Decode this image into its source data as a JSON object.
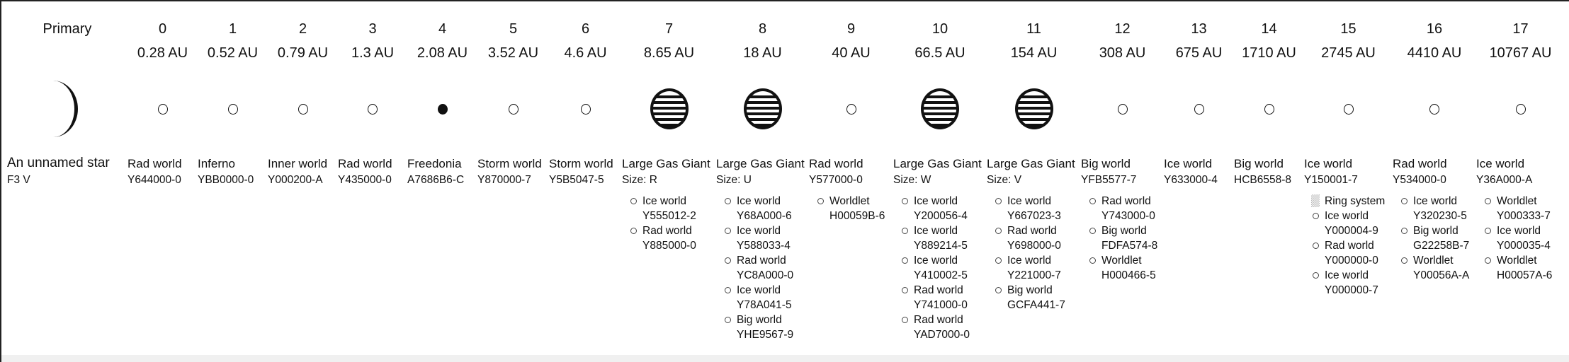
{
  "primary": {
    "label": "Primary",
    "name": "An unnamed star",
    "classification": "F3 V",
    "icon": "star-arc"
  },
  "orbits": [
    {
      "orbit": "0",
      "distance": "0.28 AU",
      "icon": "small-world",
      "type": "Rad world",
      "detail": "Y644000-0",
      "moons": []
    },
    {
      "orbit": "1",
      "distance": "0.52 AU",
      "icon": "small-world",
      "type": "Inferno",
      "detail": "YBB0000-0",
      "moons": []
    },
    {
      "orbit": "2",
      "distance": "0.79 AU",
      "icon": "small-world",
      "type": "Inner world",
      "detail": "Y000200-A",
      "moons": []
    },
    {
      "orbit": "3",
      "distance": "1.3 AU",
      "icon": "small-world",
      "type": "Rad world",
      "detail": "Y435000-0",
      "moons": []
    },
    {
      "orbit": "4",
      "distance": "2.08 AU",
      "icon": "mainworld-filled",
      "type": "Freedonia",
      "detail": "A7686B6-C",
      "moons": []
    },
    {
      "orbit": "5",
      "distance": "3.52 AU",
      "icon": "small-world",
      "type": "Storm world",
      "detail": "Y870000-7",
      "moons": []
    },
    {
      "orbit": "6",
      "distance": "4.6 AU",
      "icon": "small-world",
      "type": "Storm world",
      "detail": "Y5B5047-5",
      "moons": []
    },
    {
      "orbit": "7",
      "distance": "8.65 AU",
      "icon": "gas-giant",
      "type": "Large Gas Giant",
      "detail": "Size: R",
      "moons": [
        {
          "type": "Ice world",
          "upp": "Y555012-2"
        },
        {
          "type": "Rad world",
          "upp": "Y885000-0"
        }
      ]
    },
    {
      "orbit": "8",
      "distance": "18 AU",
      "icon": "gas-giant",
      "type": "Large Gas Giant",
      "detail": "Size: U",
      "moons": [
        {
          "type": "Ice world",
          "upp": "Y68A000-6"
        },
        {
          "type": "Ice world",
          "upp": "Y588033-4"
        },
        {
          "type": "Rad world",
          "upp": "YC8A000-0"
        },
        {
          "type": "Ice world",
          "upp": "Y78A041-5"
        },
        {
          "type": "Big world",
          "upp": "YHE9567-9"
        }
      ]
    },
    {
      "orbit": "9",
      "distance": "40 AU",
      "icon": "small-world",
      "type": "Rad world",
      "detail": "Y577000-0",
      "moons": [
        {
          "type": "Worldlet",
          "upp": "H00059B-6"
        }
      ]
    },
    {
      "orbit": "10",
      "distance": "66.5 AU",
      "icon": "gas-giant",
      "type": "Large Gas Giant",
      "detail": "Size: W",
      "moons": [
        {
          "type": "Ice world",
          "upp": "Y200056-4"
        },
        {
          "type": "Ice world",
          "upp": "Y889214-5"
        },
        {
          "type": "Ice world",
          "upp": "Y410002-5"
        },
        {
          "type": "Rad world",
          "upp": "Y741000-0"
        },
        {
          "type": "Rad world",
          "upp": "YAD7000-0"
        }
      ]
    },
    {
      "orbit": "11",
      "distance": "154 AU",
      "icon": "gas-giant",
      "type": "Large Gas Giant",
      "detail": "Size: V",
      "moons": [
        {
          "type": "Ice world",
          "upp": "Y667023-3"
        },
        {
          "type": "Rad world",
          "upp": "Y698000-0"
        },
        {
          "type": "Ice world",
          "upp": "Y221000-7"
        },
        {
          "type": "Big world",
          "upp": "GCFA441-7"
        }
      ]
    },
    {
      "orbit": "12",
      "distance": "308 AU",
      "icon": "small-world",
      "type": "Big world",
      "detail": "YFB5577-7",
      "moons": [
        {
          "type": "Rad world",
          "upp": "Y743000-0"
        },
        {
          "type": "Big world",
          "upp": "FDFA574-8"
        },
        {
          "type": "Worldlet",
          "upp": "H000466-5"
        }
      ]
    },
    {
      "orbit": "13",
      "distance": "675 AU",
      "icon": "small-world",
      "type": "Ice world",
      "detail": "Y633000-4",
      "moons": []
    },
    {
      "orbit": "14",
      "distance": "1710 AU",
      "icon": "small-world",
      "type": "Big world",
      "detail": "HCB6558-8",
      "moons": []
    },
    {
      "orbit": "15",
      "distance": "2745 AU",
      "icon": "small-world",
      "type": "Ice world",
      "detail": "Y150001-7",
      "moons": [
        {
          "type": "Ring system",
          "upp": "",
          "ring": true
        },
        {
          "type": "Ice world",
          "upp": "Y000004-9"
        },
        {
          "type": "Rad world",
          "upp": "Y000000-0"
        },
        {
          "type": "Ice world",
          "upp": "Y000000-7"
        }
      ]
    },
    {
      "orbit": "16",
      "distance": "4410 AU",
      "icon": "small-world",
      "type": "Rad world",
      "detail": "Y534000-0",
      "moons": [
        {
          "type": "Ice world",
          "upp": "Y320230-5"
        },
        {
          "type": "Big world",
          "upp": "G22258B-7"
        },
        {
          "type": "Worldlet",
          "upp": "Y00056A-A"
        }
      ]
    },
    {
      "orbit": "17",
      "distance": "10767 AU",
      "icon": "small-world",
      "type": "Ice world",
      "detail": "Y36A000-A",
      "moons": [
        {
          "type": "Worldlet",
          "upp": "Y000333-7"
        },
        {
          "type": "Ice world",
          "upp": "Y000035-4"
        },
        {
          "type": "Worldlet",
          "upp": "H00057A-6"
        }
      ]
    }
  ]
}
